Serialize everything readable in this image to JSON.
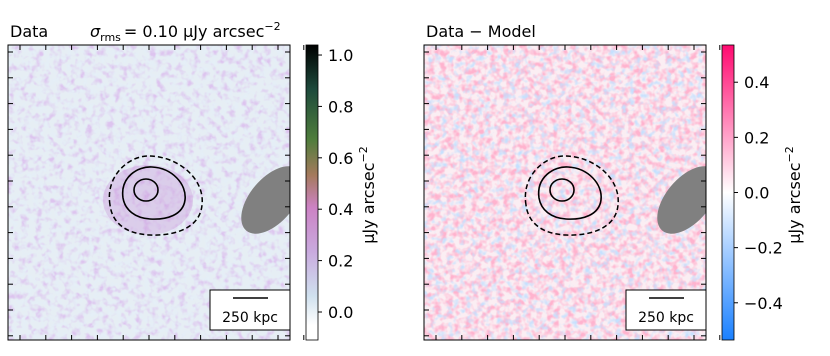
{
  "panels": [
    {
      "title": "Data",
      "subtitle": {
        "symbol": "σ",
        "subscript": "rms",
        "text": "= 0.10 μJy arcsec",
        "superscript": "−2"
      },
      "colorbar": {
        "label": "μJy arcsec",
        "label_superscript": "−2",
        "ylim": [
          -0.109,
          1.039
        ],
        "yticks": [
          {
            "value": 0,
            "label": "0.0"
          },
          0.2,
          0.4,
          0.6,
          0.8,
          {
            "value": 1,
            "label": "1.0"
          }
        ]
      },
      "scale_bar": "250 kpc"
    },
    {
      "title": "Data − Model",
      "colorbar": {
        "label": "μJy arcsec",
        "label_superscript": "−2",
        "ylim": [
          -0.535,
          0.535
        ],
        "yticks": [
          {
            "value": -0.4,
            "label": "−0.4"
          },
          {
            "value": -0.2,
            "label": "−0.2"
          },
          {
            "value": 0,
            "label": "0.0"
          },
          0.2,
          0.4
        ]
      },
      "scale_bar": "250 kpc"
    }
  ]
}
